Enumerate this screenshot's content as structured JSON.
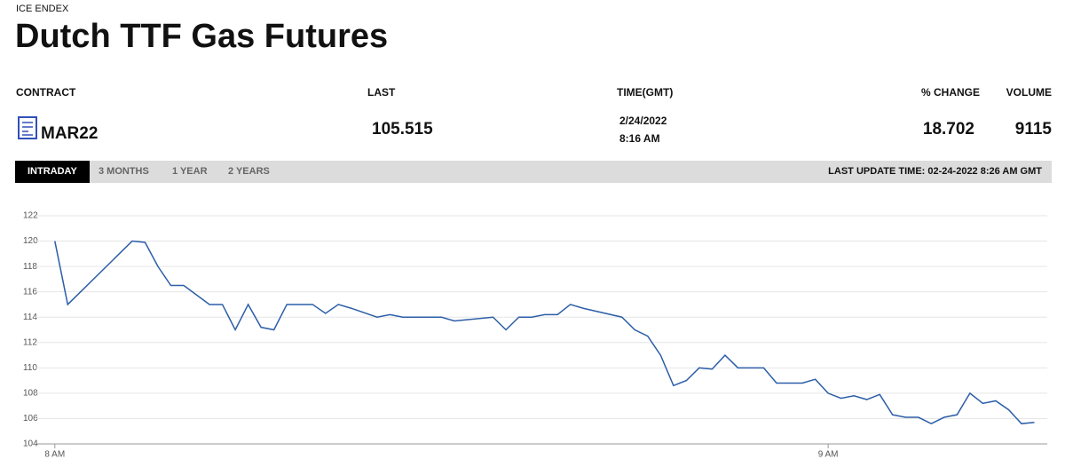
{
  "header": {
    "exchange": "ICE ENDEX",
    "title": "Dutch TTF Gas Futures"
  },
  "table": {
    "columns": [
      "CONTRACT",
      "LAST",
      "TIME(GMT)",
      "% CHANGE",
      "VOLUME"
    ],
    "row": {
      "contract": "MAR22",
      "last": 105.515,
      "date": "2/24/2022",
      "time": "8:16 AM",
      "change": 18.702,
      "volume": 9115
    }
  },
  "tabs": [
    "INTRADAY",
    "3 MONTHS",
    "1 YEAR",
    "2 YEARS"
  ],
  "active_tab": 0,
  "last_update": "LAST UPDATE TIME: 02-24-2022 8:26 AM GMT",
  "chart_data": {
    "type": "line",
    "color": "#2c5ea8",
    "grid": true,
    "x": [
      0,
      1,
      6,
      7,
      8,
      9,
      10,
      12,
      13,
      14,
      15,
      16,
      17,
      18,
      20,
      21,
      22,
      23,
      25,
      26,
      27,
      30,
      31,
      34,
      35,
      36,
      37,
      38,
      39,
      40,
      41,
      44,
      45,
      46,
      47,
      48,
      49,
      50,
      51,
      52,
      53,
      55,
      56,
      57,
      58,
      59,
      60,
      61,
      62,
      63,
      64,
      65,
      66,
      67,
      68,
      69,
      70,
      71,
      72,
      73,
      74,
      75,
      76
    ],
    "values": [
      120,
      115,
      120,
      119.9,
      118,
      116.5,
      116.5,
      115,
      115,
      113,
      115,
      113.2,
      113,
      115,
      115,
      114.3,
      115,
      114.7,
      114,
      114.2,
      114,
      114,
      113.7,
      114,
      113,
      114,
      114,
      114.2,
      114.2,
      115,
      114.7,
      114,
      113,
      112.5,
      111,
      108.6,
      109,
      110,
      109.9,
      111,
      110,
      110,
      108.8,
      108.8,
      108.8,
      109.1,
      108,
      107.6,
      107.8,
      107.5,
      107.9,
      106.3,
      106.1,
      106.1,
      105.6,
      106.1,
      106.3,
      108,
      107.2,
      107.4,
      106.7,
      105.6,
      105.7
    ],
    "xlim": [
      -1.5,
      77
    ],
    "xticks": [
      {
        "value": 0,
        "label": "8 AM"
      },
      {
        "value": 60,
        "label": "9 AM"
      }
    ],
    "ylim": [
      104,
      122
    ],
    "yticks": [
      104,
      106,
      108,
      110,
      112,
      114,
      116,
      118,
      120,
      122
    ]
  }
}
